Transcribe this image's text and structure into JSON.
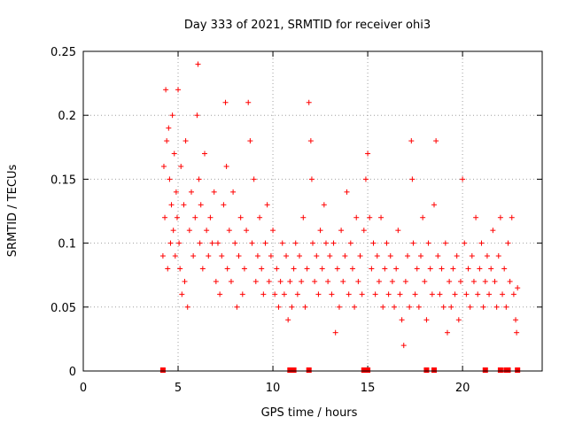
{
  "chart_data": {
    "type": "scatter",
    "title": "Day 333 of 2021, SRMTID for receiver ohi3",
    "xlabel": "GPS time / hours",
    "ylabel": "SRMTID / TECUs",
    "xlim": [
      0,
      24.2
    ],
    "ylim": [
      0,
      0.25
    ],
    "x_ticks": [
      0,
      5,
      10,
      15,
      20
    ],
    "x_tick_labels": [
      "0",
      "5",
      "10",
      "15",
      "20"
    ],
    "y_ticks": [
      0,
      0.05,
      0.1,
      0.15,
      0.2,
      0.25
    ],
    "y_tick_labels": [
      "0",
      "0.05",
      "0.1",
      "0.15",
      "0.2",
      "0.25"
    ],
    "grid": true,
    "marker": "plus",
    "color": "#ff0000",
    "series": [
      {
        "name": "SRMTID",
        "points": [
          [
            4.2,
            0.09
          ],
          [
            4.25,
            0.16
          ],
          [
            4.3,
            0.12
          ],
          [
            4.35,
            0.22
          ],
          [
            4.4,
            0.18
          ],
          [
            4.45,
            0.08
          ],
          [
            4.5,
            0.19
          ],
          [
            4.55,
            0.15
          ],
          [
            4.6,
            0.1
          ],
          [
            4.65,
            0.13
          ],
          [
            4.7,
            0.2
          ],
          [
            4.75,
            0.11
          ],
          [
            4.8,
            0.17
          ],
          [
            4.85,
            0.09
          ],
          [
            4.9,
            0.14
          ],
          [
            4.95,
            0.12
          ],
          [
            5.0,
            0.22
          ],
          [
            5.05,
            0.1
          ],
          [
            5.1,
            0.08
          ],
          [
            5.15,
            0.16
          ],
          [
            5.2,
            0.06
          ],
          [
            5.3,
            0.13
          ],
          [
            5.35,
            0.07
          ],
          [
            5.4,
            0.18
          ],
          [
            5.5,
            0.05
          ],
          [
            5.6,
            0.11
          ],
          [
            5.7,
            0.14
          ],
          [
            5.8,
            0.09
          ],
          [
            5.9,
            0.12
          ],
          [
            6.0,
            0.2
          ],
          [
            6.05,
            0.24
          ],
          [
            6.1,
            0.15
          ],
          [
            6.15,
            0.1
          ],
          [
            6.2,
            0.13
          ],
          [
            6.3,
            0.08
          ],
          [
            6.4,
            0.17
          ],
          [
            6.5,
            0.11
          ],
          [
            6.6,
            0.09
          ],
          [
            6.7,
            0.12
          ],
          [
            6.8,
            0.1
          ],
          [
            6.9,
            0.14
          ],
          [
            7.0,
            0.07
          ],
          [
            7.1,
            0.1
          ],
          [
            7.2,
            0.06
          ],
          [
            7.3,
            0.09
          ],
          [
            7.4,
            0.13
          ],
          [
            7.5,
            0.21
          ],
          [
            7.55,
            0.16
          ],
          [
            7.6,
            0.08
          ],
          [
            7.7,
            0.11
          ],
          [
            7.8,
            0.07
          ],
          [
            7.9,
            0.14
          ],
          [
            8.0,
            0.1
          ],
          [
            8.1,
            0.05
          ],
          [
            8.2,
            0.09
          ],
          [
            8.3,
            0.12
          ],
          [
            8.4,
            0.06
          ],
          [
            8.5,
            0.08
          ],
          [
            8.6,
            0.11
          ],
          [
            8.7,
            0.21
          ],
          [
            8.8,
            0.18
          ],
          [
            8.9,
            0.1
          ],
          [
            9.0,
            0.15
          ],
          [
            9.1,
            0.07
          ],
          [
            9.2,
            0.09
          ],
          [
            9.3,
            0.12
          ],
          [
            9.4,
            0.08
          ],
          [
            9.5,
            0.06
          ],
          [
            9.6,
            0.1
          ],
          [
            9.7,
            0.13
          ],
          [
            9.8,
            0.07
          ],
          [
            9.9,
            0.09
          ],
          [
            10.0,
            0.11
          ],
          [
            10.1,
            0.06
          ],
          [
            10.2,
            0.08
          ],
          [
            10.3,
            0.05
          ],
          [
            10.4,
            0.07
          ],
          [
            10.5,
            0.1
          ],
          [
            10.6,
            0.06
          ],
          [
            10.7,
            0.09
          ],
          [
            10.8,
            0.04
          ],
          [
            10.9,
            0.07
          ],
          [
            11.0,
            0.05
          ],
          [
            11.1,
            0.08
          ],
          [
            11.2,
            0.1
          ],
          [
            11.3,
            0.06
          ],
          [
            11.4,
            0.09
          ],
          [
            11.5,
            0.07
          ],
          [
            11.6,
            0.12
          ],
          [
            11.7,
            0.05
          ],
          [
            11.8,
            0.08
          ],
          [
            11.9,
            0.21
          ],
          [
            12.0,
            0.18
          ],
          [
            12.05,
            0.15
          ],
          [
            12.1,
            0.1
          ],
          [
            12.2,
            0.07
          ],
          [
            12.3,
            0.09
          ],
          [
            12.4,
            0.06
          ],
          [
            12.5,
            0.11
          ],
          [
            12.6,
            0.08
          ],
          [
            12.7,
            0.13
          ],
          [
            12.8,
            0.1
          ],
          [
            12.9,
            0.07
          ],
          [
            13.0,
            0.09
          ],
          [
            13.1,
            0.06
          ],
          [
            13.2,
            0.1
          ],
          [
            13.3,
            0.03
          ],
          [
            13.4,
            0.08
          ],
          [
            13.5,
            0.05
          ],
          [
            13.6,
            0.11
          ],
          [
            13.7,
            0.07
          ],
          [
            13.8,
            0.09
          ],
          [
            13.9,
            0.14
          ],
          [
            14.0,
            0.06
          ],
          [
            14.1,
            0.1
          ],
          [
            14.2,
            0.08
          ],
          [
            14.3,
            0.05
          ],
          [
            14.4,
            0.12
          ],
          [
            14.5,
            0.07
          ],
          [
            14.6,
            0.09
          ],
          [
            14.7,
            0.06
          ],
          [
            14.8,
            0.11
          ],
          [
            14.9,
            0.15
          ],
          [
            15.0,
            0.17
          ],
          [
            15.1,
            0.12
          ],
          [
            15.2,
            0.08
          ],
          [
            15.3,
            0.1
          ],
          [
            15.4,
            0.06
          ],
          [
            15.5,
            0.09
          ],
          [
            15.6,
            0.07
          ],
          [
            15.7,
            0.12
          ],
          [
            15.8,
            0.05
          ],
          [
            15.9,
            0.08
          ],
          [
            16.0,
            0.1
          ],
          [
            16.1,
            0.06
          ],
          [
            16.2,
            0.09
          ],
          [
            16.3,
            0.07
          ],
          [
            16.4,
            0.05
          ],
          [
            16.5,
            0.08
          ],
          [
            16.6,
            0.11
          ],
          [
            16.7,
            0.06
          ],
          [
            16.8,
            0.04
          ],
          [
            16.9,
            0.02
          ],
          [
            17.0,
            0.07
          ],
          [
            17.1,
            0.09
          ],
          [
            17.2,
            0.05
          ],
          [
            17.3,
            0.18
          ],
          [
            17.35,
            0.15
          ],
          [
            17.4,
            0.1
          ],
          [
            17.5,
            0.06
          ],
          [
            17.6,
            0.08
          ],
          [
            17.7,
            0.05
          ],
          [
            17.8,
            0.09
          ],
          [
            17.9,
            0.12
          ],
          [
            18.0,
            0.07
          ],
          [
            18.1,
            0.04
          ],
          [
            18.2,
            0.1
          ],
          [
            18.3,
            0.08
          ],
          [
            18.4,
            0.06
          ],
          [
            18.5,
            0.13
          ],
          [
            18.6,
            0.18
          ],
          [
            18.7,
            0.09
          ],
          [
            18.8,
            0.06
          ],
          [
            18.9,
            0.08
          ],
          [
            19.0,
            0.05
          ],
          [
            19.1,
            0.1
          ],
          [
            19.2,
            0.03
          ],
          [
            19.3,
            0.07
          ],
          [
            19.4,
            0.05
          ],
          [
            19.5,
            0.08
          ],
          [
            19.6,
            0.06
          ],
          [
            19.7,
            0.09
          ],
          [
            19.8,
            0.04
          ],
          [
            19.9,
            0.07
          ],
          [
            20.0,
            0.15
          ],
          [
            20.1,
            0.1
          ],
          [
            20.2,
            0.06
          ],
          [
            20.3,
            0.08
          ],
          [
            20.4,
            0.05
          ],
          [
            20.5,
            0.09
          ],
          [
            20.6,
            0.07
          ],
          [
            20.7,
            0.12
          ],
          [
            20.8,
            0.06
          ],
          [
            20.9,
            0.08
          ],
          [
            21.0,
            0.1
          ],
          [
            21.1,
            0.05
          ],
          [
            21.2,
            0.07
          ],
          [
            21.3,
            0.09
          ],
          [
            21.4,
            0.06
          ],
          [
            21.5,
            0.08
          ],
          [
            21.6,
            0.11
          ],
          [
            21.7,
            0.07
          ],
          [
            21.8,
            0.05
          ],
          [
            21.9,
            0.09
          ],
          [
            22.0,
            0.12
          ],
          [
            22.1,
            0.06
          ],
          [
            22.2,
            0.08
          ],
          [
            22.3,
            0.05
          ],
          [
            22.4,
            0.1
          ],
          [
            22.5,
            0.07
          ],
          [
            22.6,
            0.12
          ],
          [
            22.7,
            0.06
          ],
          [
            22.8,
            0.04
          ],
          [
            22.85,
            0.03
          ],
          [
            22.9,
            0.065
          ]
        ]
      }
    ],
    "gap_markers_x": [
      4.2,
      10.9,
      11.1,
      11.9,
      14.8,
      15.0,
      18.1,
      18.5,
      21.2,
      22.0,
      22.3,
      22.4,
      22.9
    ]
  }
}
